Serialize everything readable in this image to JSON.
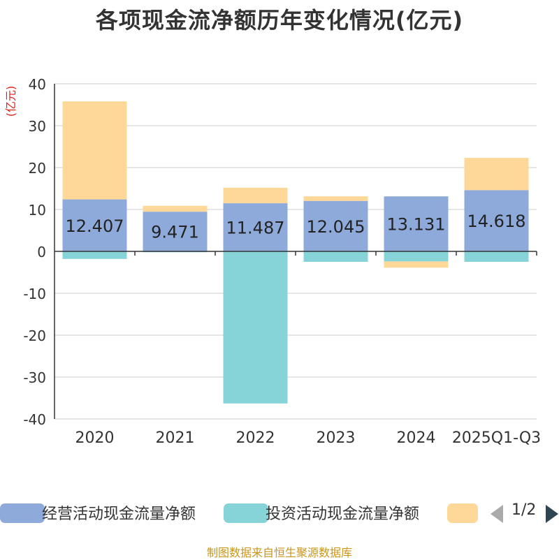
{
  "chart_data": {
    "type": "bar",
    "stacked": true,
    "title": "各项现金流净额历年变化情况(亿元)",
    "ylabel": "(亿元)",
    "xlabel": "",
    "ylim": [
      -40,
      40
    ],
    "yticks": [
      40,
      30,
      20,
      10,
      0,
      -10,
      -20,
      -30,
      -40
    ],
    "categories": [
      "2020",
      "2021",
      "2022",
      "2023",
      "2024",
      "2025Q1-Q3"
    ],
    "series": [
      {
        "name": "经营活动现金流量净额",
        "color": "#8eaadb",
        "values": [
          12.407,
          9.471,
          11.487,
          12.045,
          13.131,
          14.618
        ],
        "labels": [
          "12.407",
          "9.471",
          "11.487",
          "12.045",
          "13.131",
          "14.618"
        ]
      },
      {
        "name": "投资活动现金流量净额",
        "color": "#87d4d8",
        "values": [
          -1.8,
          -0.2,
          -36.3,
          -2.5,
          -2.4,
          -2.5
        ]
      },
      {
        "name": "",
        "color": "#fdd898",
        "values": [
          23.4,
          1.4,
          3.7,
          1.1,
          -1.5,
          7.7
        ]
      }
    ],
    "legend_position": "bottom",
    "grid": true
  },
  "legend": {
    "page_indicator": "1/2",
    "prev_icon": "triangle-left-icon",
    "next_icon": "triangle-right-icon"
  },
  "source": "制图数据来自恒生聚源数据库"
}
